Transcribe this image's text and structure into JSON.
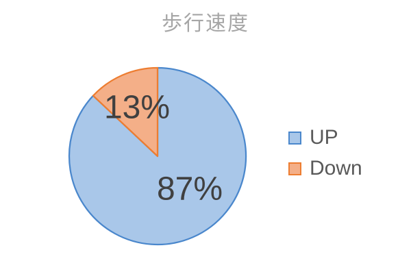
{
  "chart_data": {
    "type": "pie",
    "title": "歩行速度",
    "categories": [
      "UP",
      "Down"
    ],
    "values": [
      87,
      13
    ],
    "unit": "%",
    "data_labels": [
      "87%",
      "13%"
    ],
    "colors": [
      {
        "fill": "#A9C7E9",
        "border": "#4A87CC"
      },
      {
        "fill": "#F4AF88",
        "border": "#ED7D31"
      }
    ],
    "legend_position": "right",
    "start_angle_deg": 0,
    "direction": "clockwise",
    "background": "#FFFFFF",
    "title_color": "#A6A6A6",
    "label_color": "#404040",
    "legend_text_color": "#595959"
  }
}
